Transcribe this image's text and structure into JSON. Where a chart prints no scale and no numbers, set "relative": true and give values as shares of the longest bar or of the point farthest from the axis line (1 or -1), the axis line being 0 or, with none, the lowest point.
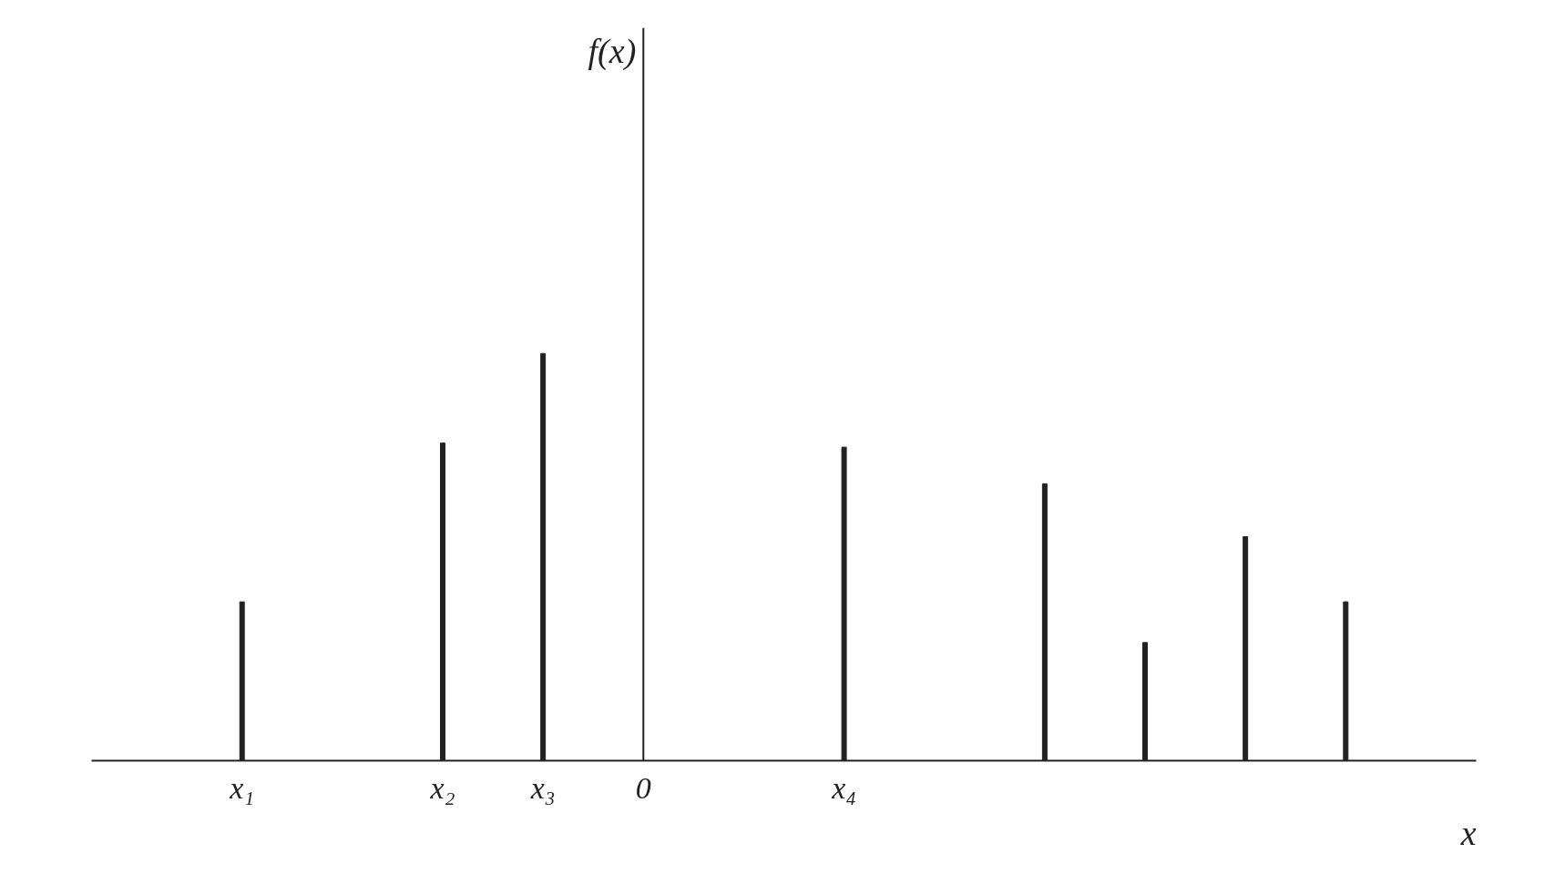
{
  "chart_data": {
    "type": "bar",
    "relative": true,
    "xlabel": "x",
    "annotations": [
      "f(x)"
    ],
    "categories": [
      "x₁",
      null,
      "x₂",
      "x₃",
      "0",
      null,
      "x₄",
      null,
      null,
      null,
      null,
      null
    ],
    "values": [
      0.39,
      null,
      0.78,
      1,
      null,
      null,
      0.77,
      null,
      0.68,
      0.29,
      0.55,
      0.39
    ],
    "color": "#222222"
  }
}
